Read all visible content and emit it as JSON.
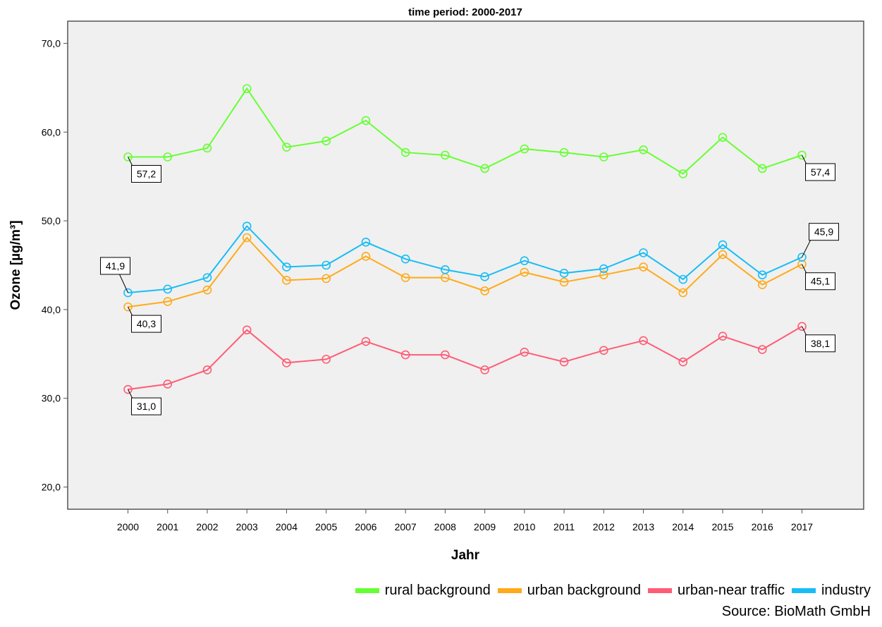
{
  "chart_data": {
    "type": "line",
    "title": "time period: 2000-2017",
    "xlabel": "Jahr",
    "ylabel": "Ozone [µg/m³]",
    "ylim": [
      17.5,
      72.5
    ],
    "yticks": [
      "20,0",
      "30,0",
      "40,0",
      "50,0",
      "60,0",
      "70,0"
    ],
    "categories": [
      "2000",
      "2001",
      "2002",
      "2003",
      "2004",
      "2005",
      "2006",
      "2007",
      "2008",
      "2009",
      "2010",
      "2011",
      "2012",
      "2013",
      "2014",
      "2015",
      "2016",
      "2017"
    ],
    "grid": false,
    "legend_position": "bottom-right",
    "series": [
      {
        "name": "rural background",
        "color": "#66ff33",
        "values": [
          57.2,
          57.2,
          58.2,
          64.9,
          58.3,
          59.0,
          61.3,
          57.7,
          57.4,
          55.9,
          58.1,
          57.7,
          57.2,
          58.0,
          55.3,
          59.4,
          55.9,
          57.4
        ]
      },
      {
        "name": "urban background",
        "color": "#ffaa1a",
        "values": [
          40.3,
          40.9,
          42.2,
          48.1,
          43.3,
          43.5,
          46.0,
          43.6,
          43.6,
          42.1,
          44.2,
          43.1,
          43.9,
          44.8,
          41.9,
          46.2,
          42.8,
          45.1
        ]
      },
      {
        "name": "urban-near traffic",
        "color": "#ff5c75",
        "values": [
          31.0,
          31.6,
          33.2,
          37.7,
          34.0,
          34.4,
          36.4,
          34.9,
          34.9,
          33.2,
          35.2,
          34.1,
          35.4,
          36.5,
          34.1,
          37.0,
          35.5,
          38.1
        ]
      },
      {
        "name": "industry",
        "color": "#19bdf5",
        "values": [
          41.9,
          42.3,
          43.6,
          49.4,
          44.8,
          45.0,
          47.6,
          45.7,
          44.5,
          43.7,
          45.5,
          44.1,
          44.6,
          46.4,
          43.4,
          47.3,
          43.9,
          45.9
        ]
      }
    ],
    "data_labels": [
      {
        "series": 0,
        "index": 0,
        "text": "57,2",
        "pos": "below"
      },
      {
        "series": 0,
        "index": 17,
        "text": "57,4",
        "pos": "below"
      },
      {
        "series": 3,
        "index": 0,
        "text": "41,9",
        "pos": "above-left"
      },
      {
        "series": 3,
        "index": 17,
        "text": "45,9",
        "pos": "above-right"
      },
      {
        "series": 1,
        "index": 0,
        "text": "40,3",
        "pos": "below"
      },
      {
        "series": 1,
        "index": 17,
        "text": "45,1",
        "pos": "below"
      },
      {
        "series": 2,
        "index": 0,
        "text": "31,0",
        "pos": "below"
      },
      {
        "series": 2,
        "index": 17,
        "text": "38,1",
        "pos": "below"
      }
    ]
  },
  "source": "Source: BioMath GmbH"
}
